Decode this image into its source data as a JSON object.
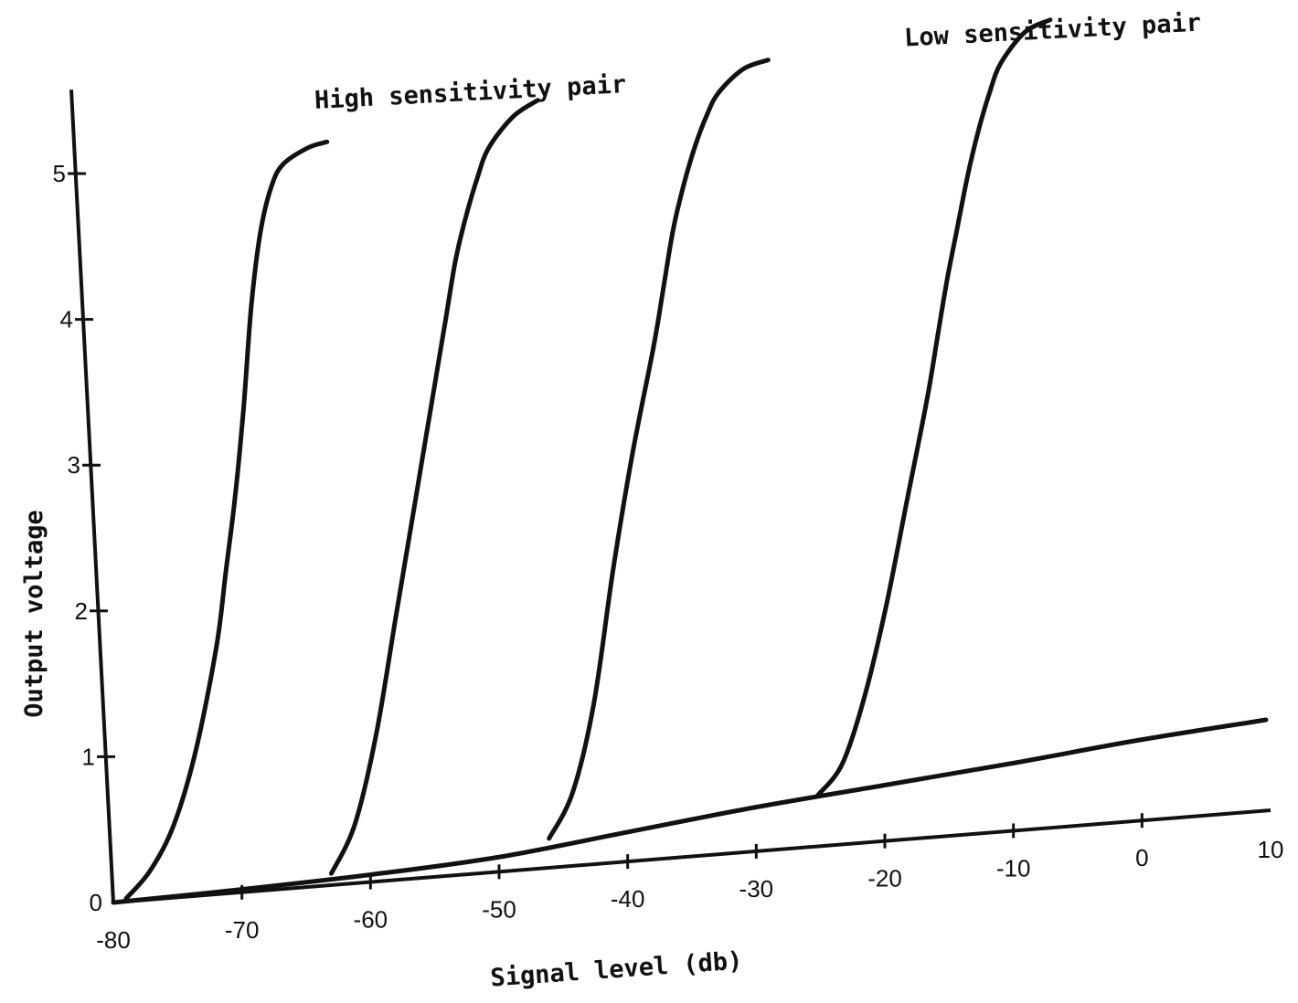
{
  "chart_data": {
    "type": "line",
    "title": "",
    "xlabel": "Signal level (db)",
    "ylabel": "Output voltage",
    "xlim": [
      -80,
      10
    ],
    "ylim": [
      0,
      5.5
    ],
    "x_ticks": [
      -80,
      -70,
      -60,
      -50,
      -40,
      -30,
      -20,
      -10,
      0,
      10
    ],
    "x_tick_labels": [
      "-80",
      "-70",
      "-60",
      "-50",
      "-40",
      "-30",
      "-20",
      "-10",
      "0",
      "10"
    ],
    "y_ticks": [
      0,
      1,
      2,
      3,
      4,
      5
    ],
    "y_tick_labels": [
      "0",
      "1",
      "2",
      "3",
      "4",
      "5"
    ],
    "grid": false,
    "annotations": [
      {
        "text": "High sensitivity pair"
      },
      {
        "text": "Low sensitivity pair"
      }
    ],
    "series": [
      {
        "x": [
          -79,
          -77,
          -75,
          -73,
          -71,
          -70,
          -69,
          -68,
          -67,
          -66,
          -65,
          -64,
          -62,
          -60.5
        ],
        "y": [
          0.02,
          0.2,
          0.5,
          1.0,
          1.7,
          2.2,
          2.7,
          3.3,
          4.0,
          4.5,
          4.8,
          4.95,
          5.05,
          5.08
        ]
      },
      {
        "x": [
          -63,
          -61,
          -59,
          -57,
          -55,
          -54,
          -53,
          -52,
          -51,
          -50,
          -49,
          -48,
          -46,
          -44
        ],
        "y": [
          0.08,
          0.4,
          1.0,
          1.8,
          2.6,
          3.0,
          3.4,
          3.8,
          4.2,
          4.5,
          4.75,
          4.95,
          5.15,
          5.25
        ]
      },
      {
        "x": [
          -46,
          -44,
          -42,
          -40,
          -38,
          -36,
          -35,
          -34,
          -33,
          -32,
          -31,
          -30,
          -28,
          -26
        ],
        "y": [
          0.2,
          0.5,
          1.1,
          2.0,
          2.8,
          3.5,
          3.9,
          4.3,
          4.6,
          4.85,
          5.05,
          5.2,
          5.35,
          5.4
        ]
      },
      {
        "x": [
          -25,
          -23,
          -21,
          -19,
          -17,
          -15,
          -14,
          -13,
          -12,
          -11,
          -10,
          -9,
          -8,
          -6,
          -4
        ],
        "y": [
          0.35,
          0.55,
          1.0,
          1.6,
          2.3,
          3.0,
          3.4,
          3.8,
          4.15,
          4.5,
          4.8,
          5.05,
          5.25,
          5.45,
          5.52
        ]
      }
    ],
    "baseline": {
      "x": [
        -80,
        -70,
        -60,
        -50,
        -40,
        -30,
        -20,
        -10,
        0,
        10
      ],
      "y": [
        0.0,
        0.02,
        0.05,
        0.1,
        0.2,
        0.3,
        0.38,
        0.46,
        0.55,
        0.62
      ]
    }
  }
}
